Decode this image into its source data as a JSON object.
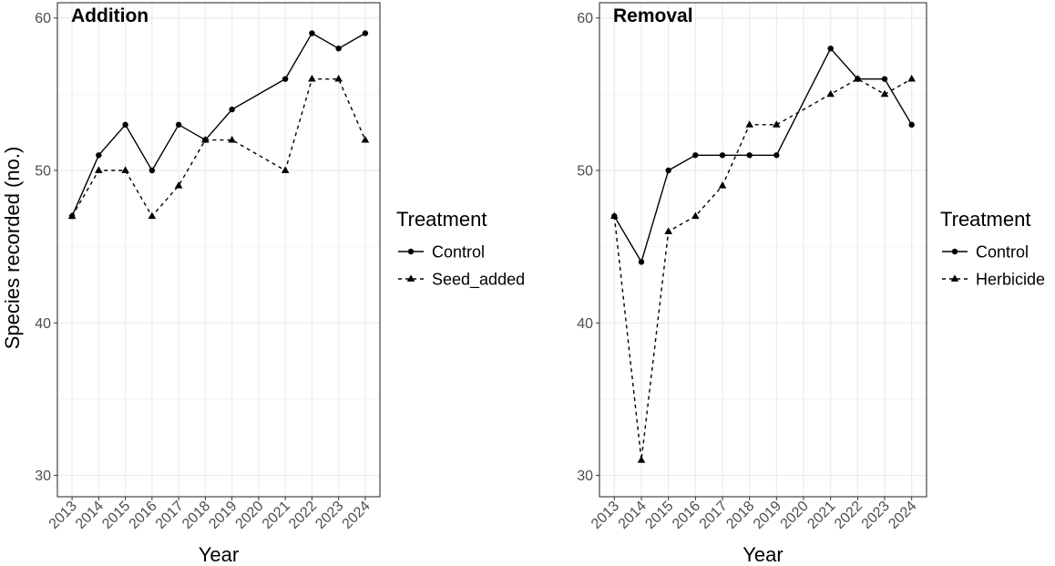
{
  "ylabel": "Species recorded (no.)",
  "chart_data": [
    {
      "type": "line",
      "title": "Addition",
      "xlabel": "Year",
      "ylabel": "Species recorded (no.)",
      "ylim": [
        28.6,
        61
      ],
      "yticks": [
        30,
        40,
        50,
        60
      ],
      "x": [
        "2013",
        "2014",
        "2015",
        "2016",
        "2017",
        "2018",
        "2019",
        "2020",
        "2021",
        "2022",
        "2023",
        "2024"
      ],
      "grid": true,
      "legend": {
        "title": "Treatment",
        "position": "right"
      },
      "series": [
        {
          "name": "Control",
          "style": "solid",
          "marker": "circle",
          "points": [
            [
              2013,
              47
            ],
            [
              2014,
              51
            ],
            [
              2015,
              53
            ],
            [
              2016,
              50
            ],
            [
              2017,
              53
            ],
            [
              2018,
              52
            ],
            [
              2019,
              54
            ],
            [
              2021,
              56
            ],
            [
              2022,
              59
            ],
            [
              2023,
              58
            ],
            [
              2024,
              59
            ]
          ]
        },
        {
          "name": "Seed_added",
          "style": "dashed",
          "marker": "triangle",
          "points": [
            [
              2013,
              47
            ],
            [
              2014,
              50
            ],
            [
              2015,
              50
            ],
            [
              2016,
              47
            ],
            [
              2017,
              49
            ],
            [
              2018,
              52
            ],
            [
              2019,
              52
            ],
            [
              2021,
              50
            ],
            [
              2022,
              56
            ],
            [
              2023,
              56
            ],
            [
              2024,
              52
            ]
          ]
        }
      ]
    },
    {
      "type": "line",
      "title": "Removal",
      "xlabel": "Year",
      "ylabel": "",
      "ylim": [
        28.6,
        61
      ],
      "yticks": [
        30,
        40,
        50,
        60
      ],
      "x": [
        "2013",
        "2014",
        "2015",
        "2016",
        "2017",
        "2018",
        "2019",
        "2020",
        "2021",
        "2022",
        "2023",
        "2024"
      ],
      "grid": true,
      "legend": {
        "title": "Treatment",
        "position": "right"
      },
      "series": [
        {
          "name": "Control",
          "style": "solid",
          "marker": "circle",
          "points": [
            [
              2013,
              47
            ],
            [
              2014,
              44
            ],
            [
              2015,
              50
            ],
            [
              2016,
              51
            ],
            [
              2017,
              51
            ],
            [
              2018,
              51
            ],
            [
              2019,
              51
            ],
            [
              2021,
              58
            ],
            [
              2022,
              56
            ],
            [
              2023,
              56
            ],
            [
              2024,
              53
            ]
          ]
        },
        {
          "name": "Herbicide",
          "style": "dashed",
          "marker": "triangle",
          "points": [
            [
              2013,
              47
            ],
            [
              2014,
              31
            ],
            [
              2015,
              46
            ],
            [
              2016,
              47
            ],
            [
              2017,
              49
            ],
            [
              2018,
              53
            ],
            [
              2019,
              53
            ],
            [
              2021,
              55
            ],
            [
              2022,
              56
            ],
            [
              2023,
              55
            ],
            [
              2024,
              56
            ]
          ]
        }
      ]
    }
  ]
}
